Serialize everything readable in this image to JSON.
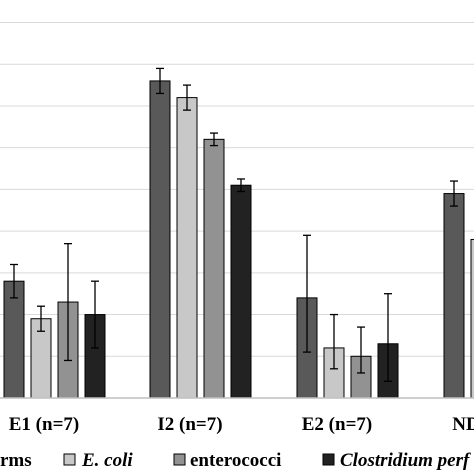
{
  "chart_data": {
    "type": "bar",
    "categories": [
      "E1 (n=7)",
      "I2 (n=7)",
      "E2 (n=7)",
      "ND"
    ],
    "series": [
      {
        "name": "rms",
        "color": "#595959",
        "values": [
          28,
          76,
          24,
          49
        ],
        "err_low": [
          4,
          3,
          13,
          3
        ],
        "err_high": [
          4,
          3,
          15,
          3
        ]
      },
      {
        "name": "E. coli",
        "color": "#c8c8c8",
        "values": [
          19,
          72,
          12,
          38
        ],
        "err_low": [
          3,
          3,
          5,
          3
        ],
        "err_high": [
          3,
          3,
          8,
          3
        ]
      },
      {
        "name": "enterococci",
        "color": "#929292",
        "values": [
          23,
          62,
          10,
          0
        ],
        "err_low": [
          14,
          1.5,
          4,
          0
        ],
        "err_high": [
          14,
          1.5,
          7,
          0
        ]
      },
      {
        "name": "Clostridium perf",
        "color": "#222222",
        "values": [
          20,
          51,
          13,
          0
        ],
        "err_low": [
          8,
          1.5,
          9,
          0
        ],
        "err_high": [
          8,
          1.5,
          12,
          0
        ]
      }
    ],
    "ylim": [
      0,
      93
    ],
    "grid": true,
    "legend": "bottom"
  }
}
